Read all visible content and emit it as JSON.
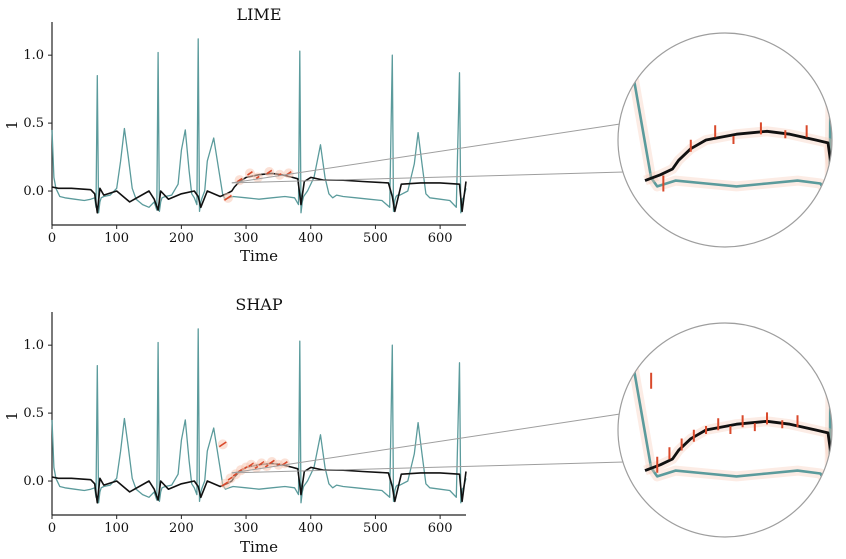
{
  "colors": {
    "ecg": "#5b9b9c",
    "reference": "#111111",
    "attribution": "#d9492b",
    "attribution_halo": "#f7c9b4",
    "axis": "#222222",
    "zoom_circle": "#9e9e9e"
  },
  "chart_data": [
    {
      "type": "line",
      "title": "LIME",
      "xlabel": "Time",
      "ylabel": "1",
      "xlim": [
        0,
        640
      ],
      "ylim": [
        -0.25,
        1.2
      ],
      "xticks": [
        0,
        100,
        200,
        300,
        400,
        500,
        600
      ],
      "yticks": [
        0.0,
        0.5,
        1.0
      ],
      "ytick_labels": [
        "0.0",
        "0.5",
        "1.0"
      ],
      "grid": false,
      "legend": "none",
      "series": [
        {
          "role": "ecg",
          "color": "#5b9b9c",
          "x": [
            0,
            3,
            6,
            12,
            20,
            35,
            50,
            60,
            66,
            68,
            70,
            72,
            74,
            76,
            80,
            90,
            100,
            106,
            112,
            118,
            124,
            130,
            140,
            150,
            158,
            162,
            164,
            166,
            168,
            170,
            175,
            185,
            195,
            200,
            206,
            212,
            216,
            220,
            224,
            226,
            228,
            230,
            232,
            236,
            240,
            250,
            258,
            264,
            268,
            274,
            280,
            300,
            320,
            340,
            360,
            375,
            381,
            383,
            385,
            387,
            389,
            395,
            405,
            415,
            422,
            428,
            434,
            440,
            450,
            470,
            490,
            510,
            522,
            526,
            528,
            530,
            532,
            534,
            538,
            550,
            560,
            566,
            572,
            578,
            584,
            600,
            615,
            625,
            630,
            632,
            634,
            636,
            640
          ],
          "y": [
            0.45,
            0.1,
            0.02,
            -0.04,
            -0.05,
            -0.06,
            -0.07,
            -0.06,
            -0.05,
            -0.12,
            0.85,
            -0.16,
            -0.08,
            -0.05,
            -0.04,
            -0.03,
            0.02,
            0.22,
            0.46,
            0.25,
            0.02,
            -0.06,
            -0.1,
            -0.12,
            -0.08,
            -0.14,
            1.02,
            -0.15,
            -0.08,
            -0.05,
            -0.04,
            -0.03,
            0.05,
            0.3,
            0.45,
            0.15,
            -0.02,
            -0.05,
            -0.1,
            1.12,
            -0.15,
            -0.08,
            -0.05,
            0.0,
            0.22,
            0.39,
            0.15,
            -0.03,
            -0.06,
            -0.05,
            -0.04,
            -0.05,
            -0.06,
            -0.05,
            -0.04,
            -0.05,
            -0.1,
            1.03,
            -0.16,
            -0.08,
            -0.04,
            0.0,
            0.1,
            0.34,
            0.1,
            -0.02,
            -0.05,
            -0.03,
            -0.04,
            -0.05,
            -0.06,
            -0.07,
            -0.12,
            1.0,
            -0.15,
            -0.07,
            -0.04,
            -0.03,
            -0.03,
            0.0,
            0.2,
            0.43,
            0.2,
            -0.02,
            -0.05,
            -0.06,
            -0.07,
            -0.12,
            0.87,
            -0.16,
            -0.06,
            -0.05,
            0.02
          ]
        },
        {
          "role": "reference",
          "color": "#111111",
          "x": [
            0,
            10,
            30,
            60,
            66,
            70,
            74,
            80,
            100,
            120,
            150,
            158,
            164,
            168,
            180,
            200,
            220,
            226,
            230,
            240,
            260,
            270,
            278,
            282,
            290,
            300,
            320,
            340,
            355,
            372,
            380,
            385,
            390,
            400,
            420,
            450,
            480,
            520,
            526,
            530,
            540,
            570,
            600,
            630,
            634,
            640
          ],
          "y": [
            0.03,
            0.02,
            0.02,
            0.01,
            -0.02,
            -0.16,
            0.02,
            -0.03,
            0.0,
            -0.08,
            0.0,
            -0.06,
            -0.14,
            0.0,
            -0.06,
            -0.02,
            0.0,
            -0.04,
            -0.12,
            0.0,
            -0.04,
            -0.02,
            0.0,
            0.03,
            0.07,
            0.1,
            0.12,
            0.13,
            0.12,
            0.1,
            0.09,
            -0.1,
            0.07,
            0.1,
            0.08,
            0.08,
            0.07,
            0.06,
            -0.04,
            -0.15,
            0.05,
            0.06,
            0.06,
            0.05,
            -0.15,
            0.07
          ]
        }
      ],
      "attribution_marks": [
        {
          "x": 272,
          "y": -0.05,
          "strength": "high"
        },
        {
          "x": 290,
          "y": 0.08,
          "strength": "medium"
        },
        {
          "x": 306,
          "y": 0.13,
          "strength": "medium"
        },
        {
          "x": 318,
          "y": 0.1,
          "strength": "low"
        },
        {
          "x": 336,
          "y": 0.14,
          "strength": "medium"
        },
        {
          "x": 352,
          "y": 0.12,
          "strength": "low"
        },
        {
          "x": 366,
          "y": 0.13,
          "strength": "medium"
        }
      ]
    },
    {
      "type": "line",
      "title": "SHAP",
      "xlabel": "Time",
      "ylabel": "1",
      "xlim": [
        0,
        640
      ],
      "ylim": [
        -0.25,
        1.2
      ],
      "xticks": [
        0,
        100,
        200,
        300,
        400,
        500,
        600
      ],
      "yticks": [
        0.0,
        0.5,
        1.0
      ],
      "ytick_labels": [
        "0.0",
        "0.5",
        "1.0"
      ],
      "grid": false,
      "legend": "none",
      "series": [
        {
          "role": "ecg",
          "color": "#5b9b9c",
          "x": [
            0,
            3,
            6,
            12,
            20,
            35,
            50,
            60,
            66,
            68,
            70,
            72,
            74,
            76,
            80,
            90,
            100,
            106,
            112,
            118,
            124,
            130,
            140,
            150,
            158,
            162,
            164,
            166,
            168,
            170,
            175,
            185,
            195,
            200,
            206,
            212,
            216,
            220,
            224,
            226,
            228,
            230,
            232,
            236,
            240,
            250,
            258,
            264,
            268,
            274,
            280,
            300,
            320,
            340,
            360,
            375,
            381,
            383,
            385,
            387,
            389,
            395,
            405,
            415,
            422,
            428,
            434,
            440,
            450,
            470,
            490,
            510,
            522,
            526,
            528,
            530,
            532,
            534,
            538,
            550,
            560,
            566,
            572,
            578,
            584,
            600,
            615,
            625,
            630,
            632,
            634,
            636,
            640
          ],
          "y": [
            0.45,
            0.1,
            0.02,
            -0.04,
            -0.05,
            -0.06,
            -0.07,
            -0.06,
            -0.05,
            -0.12,
            0.85,
            -0.16,
            -0.08,
            -0.05,
            -0.04,
            -0.03,
            0.02,
            0.22,
            0.46,
            0.25,
            0.02,
            -0.06,
            -0.1,
            -0.12,
            -0.08,
            -0.14,
            1.02,
            -0.15,
            -0.08,
            -0.05,
            -0.04,
            -0.03,
            0.05,
            0.3,
            0.45,
            0.15,
            -0.02,
            -0.05,
            -0.1,
            1.12,
            -0.15,
            -0.08,
            -0.05,
            0.0,
            0.22,
            0.39,
            0.15,
            -0.03,
            -0.06,
            -0.05,
            -0.04,
            -0.05,
            -0.06,
            -0.05,
            -0.04,
            -0.05,
            -0.1,
            1.03,
            -0.16,
            -0.08,
            -0.04,
            0.0,
            0.1,
            0.34,
            0.1,
            -0.02,
            -0.05,
            -0.03,
            -0.04,
            -0.05,
            -0.06,
            -0.07,
            -0.12,
            1.0,
            -0.15,
            -0.07,
            -0.04,
            -0.03,
            -0.03,
            0.0,
            0.2,
            0.43,
            0.2,
            -0.02,
            -0.05,
            -0.06,
            -0.07,
            -0.12,
            0.87,
            -0.16,
            -0.06,
            -0.05,
            0.02
          ]
        },
        {
          "role": "reference",
          "color": "#111111",
          "x": [
            0,
            10,
            30,
            60,
            66,
            70,
            74,
            80,
            100,
            120,
            150,
            158,
            164,
            168,
            180,
            200,
            220,
            226,
            230,
            240,
            260,
            270,
            278,
            282,
            290,
            300,
            320,
            340,
            355,
            372,
            380,
            385,
            390,
            400,
            420,
            450,
            480,
            520,
            526,
            530,
            540,
            570,
            600,
            630,
            634,
            640
          ],
          "y": [
            0.03,
            0.02,
            0.02,
            0.01,
            -0.02,
            -0.16,
            0.02,
            -0.03,
            0.0,
            -0.08,
            0.0,
            -0.06,
            -0.14,
            0.0,
            -0.06,
            -0.02,
            0.0,
            -0.04,
            -0.12,
            0.0,
            -0.04,
            -0.02,
            0.0,
            0.03,
            0.07,
            0.1,
            0.12,
            0.13,
            0.12,
            0.1,
            0.09,
            -0.1,
            0.07,
            0.1,
            0.08,
            0.08,
            0.07,
            0.06,
            -0.04,
            -0.15,
            0.05,
            0.06,
            0.06,
            0.05,
            -0.15,
            0.07
          ]
        }
      ],
      "attribution_marks": [
        {
          "x": 264,
          "y": 0.27,
          "strength": "high"
        },
        {
          "x": 268,
          "y": -0.02,
          "strength": "high"
        },
        {
          "x": 276,
          "y": 0.02,
          "strength": "medium"
        },
        {
          "x": 284,
          "y": 0.05,
          "strength": "medium"
        },
        {
          "x": 292,
          "y": 0.08,
          "strength": "medium"
        },
        {
          "x": 300,
          "y": 0.1,
          "strength": "low"
        },
        {
          "x": 308,
          "y": 0.12,
          "strength": "medium"
        },
        {
          "x": 316,
          "y": 0.1,
          "strength": "low"
        },
        {
          "x": 324,
          "y": 0.13,
          "strength": "medium"
        },
        {
          "x": 332,
          "y": 0.11,
          "strength": "low"
        },
        {
          "x": 340,
          "y": 0.14,
          "strength": "medium"
        },
        {
          "x": 350,
          "y": 0.12,
          "strength": "low"
        },
        {
          "x": 360,
          "y": 0.13,
          "strength": "medium"
        }
      ]
    }
  ]
}
